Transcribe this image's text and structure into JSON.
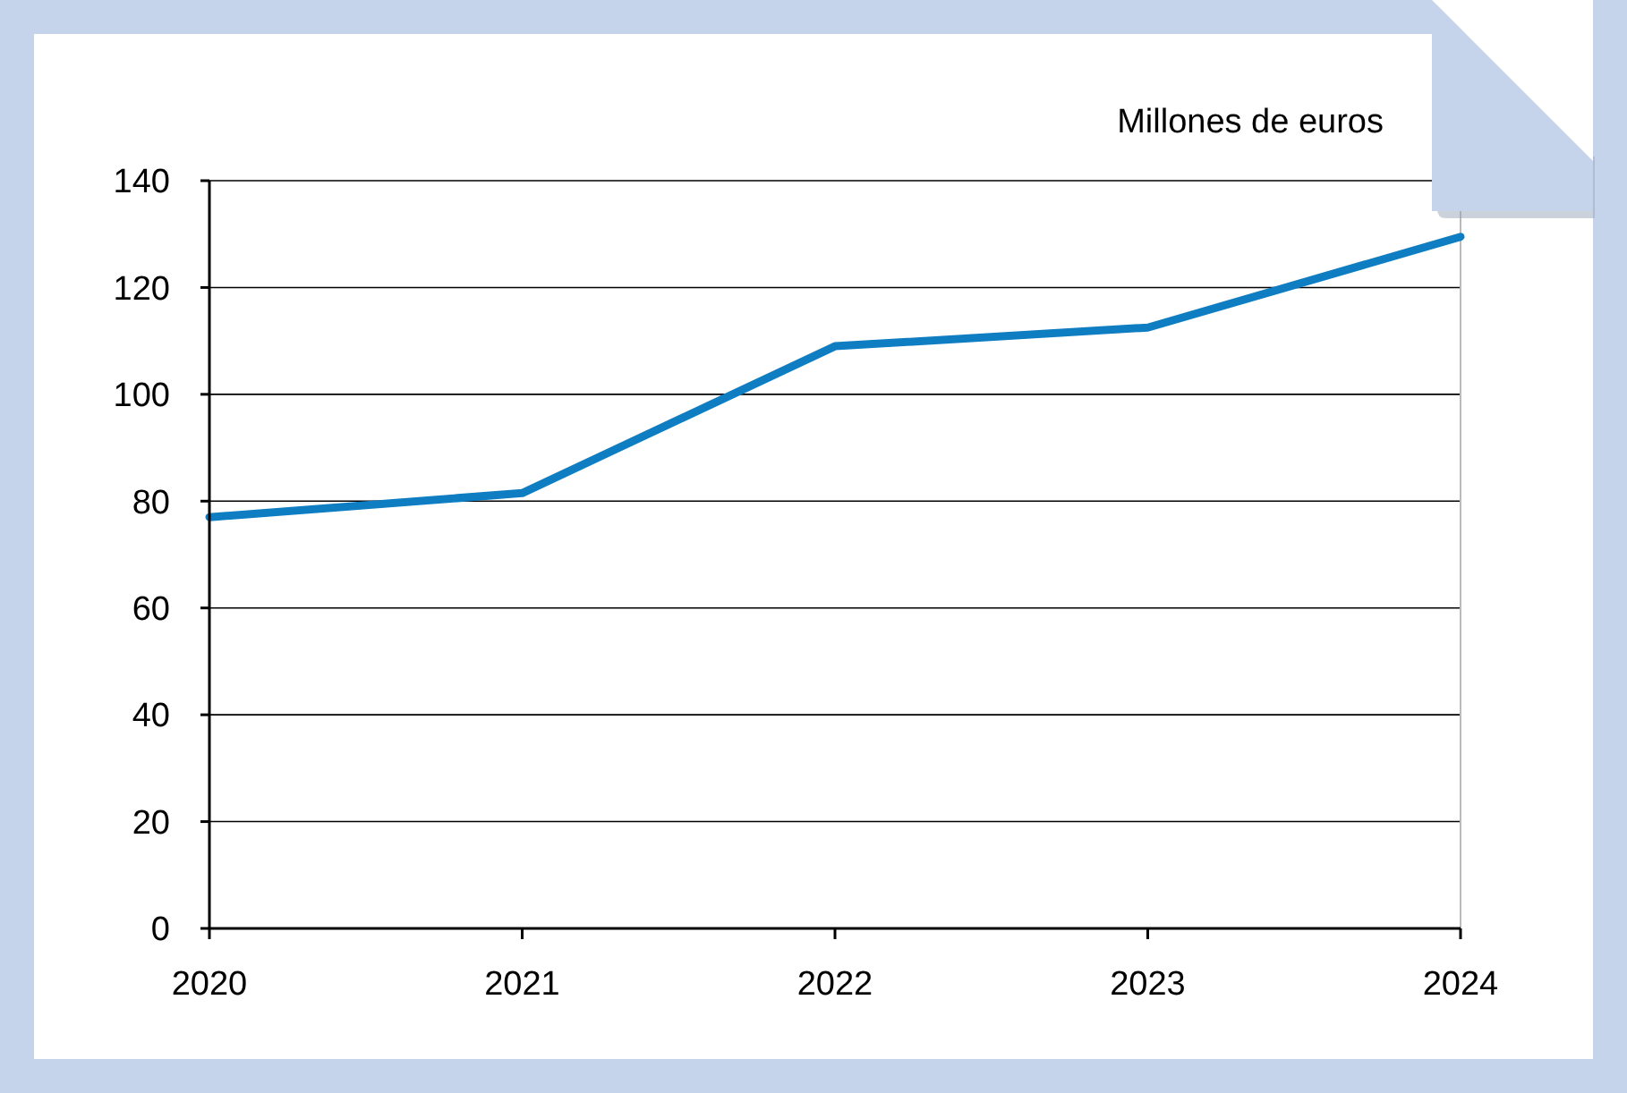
{
  "chart_data": {
    "type": "line",
    "ylabel": "Millones de euros",
    "categories": [
      "2020",
      "2021",
      "2022",
      "2023",
      "2024"
    ],
    "series": [
      {
        "color": "#0f7dc2",
        "values": [
          77,
          81.5,
          109,
          112.5,
          129.5
        ]
      }
    ],
    "ylim": [
      0,
      140
    ],
    "yticks": [
      0,
      20,
      40,
      60,
      80,
      100,
      120,
      140
    ],
    "grid": "y",
    "marker": "none",
    "line_style": "solid"
  }
}
